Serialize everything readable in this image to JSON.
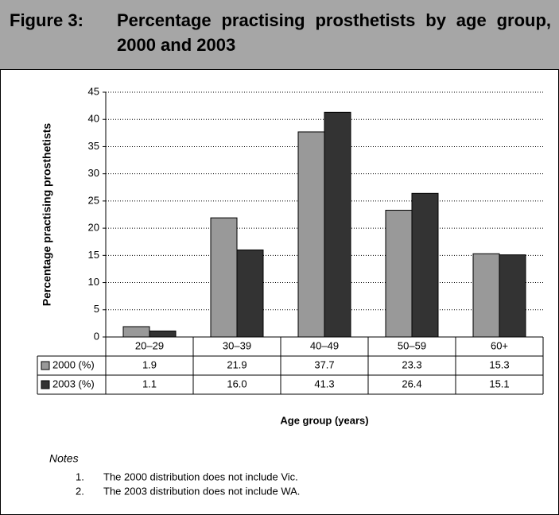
{
  "chart_data": {
    "type": "bar",
    "figure_label": "Figure 3:",
    "title": "Percentage practising prosthetists by age group, 2000 and 2003",
    "y_label": "Percentage practising prosthetists",
    "x_label": "Age group (years)",
    "categories": [
      "20–29",
      "30–39",
      "40–49",
      "50–59",
      "60+"
    ],
    "series": [
      {
        "name": "2000 (%)",
        "color": "#999999",
        "values": [
          1.9,
          21.9,
          37.7,
          23.3,
          15.3
        ]
      },
      {
        "name": "2003 (%)",
        "color": "#333333",
        "values": [
          1.1,
          16.0,
          41.3,
          26.4,
          15.1
        ],
        "value_labels": [
          "1.1",
          "16.0",
          "41.3",
          "26.4",
          "15.1"
        ]
      }
    ],
    "ylim": [
      0,
      45
    ],
    "yticks": [
      0,
      5,
      10,
      15,
      20,
      25,
      30,
      35,
      40,
      45
    ],
    "grid": true
  },
  "notes": {
    "heading": "Notes",
    "items": [
      {
        "number": "1.",
        "text": "The 2000 distribution does not include Vic."
      },
      {
        "number": "2.",
        "text": "The 2003 distribution does not include WA."
      }
    ]
  }
}
